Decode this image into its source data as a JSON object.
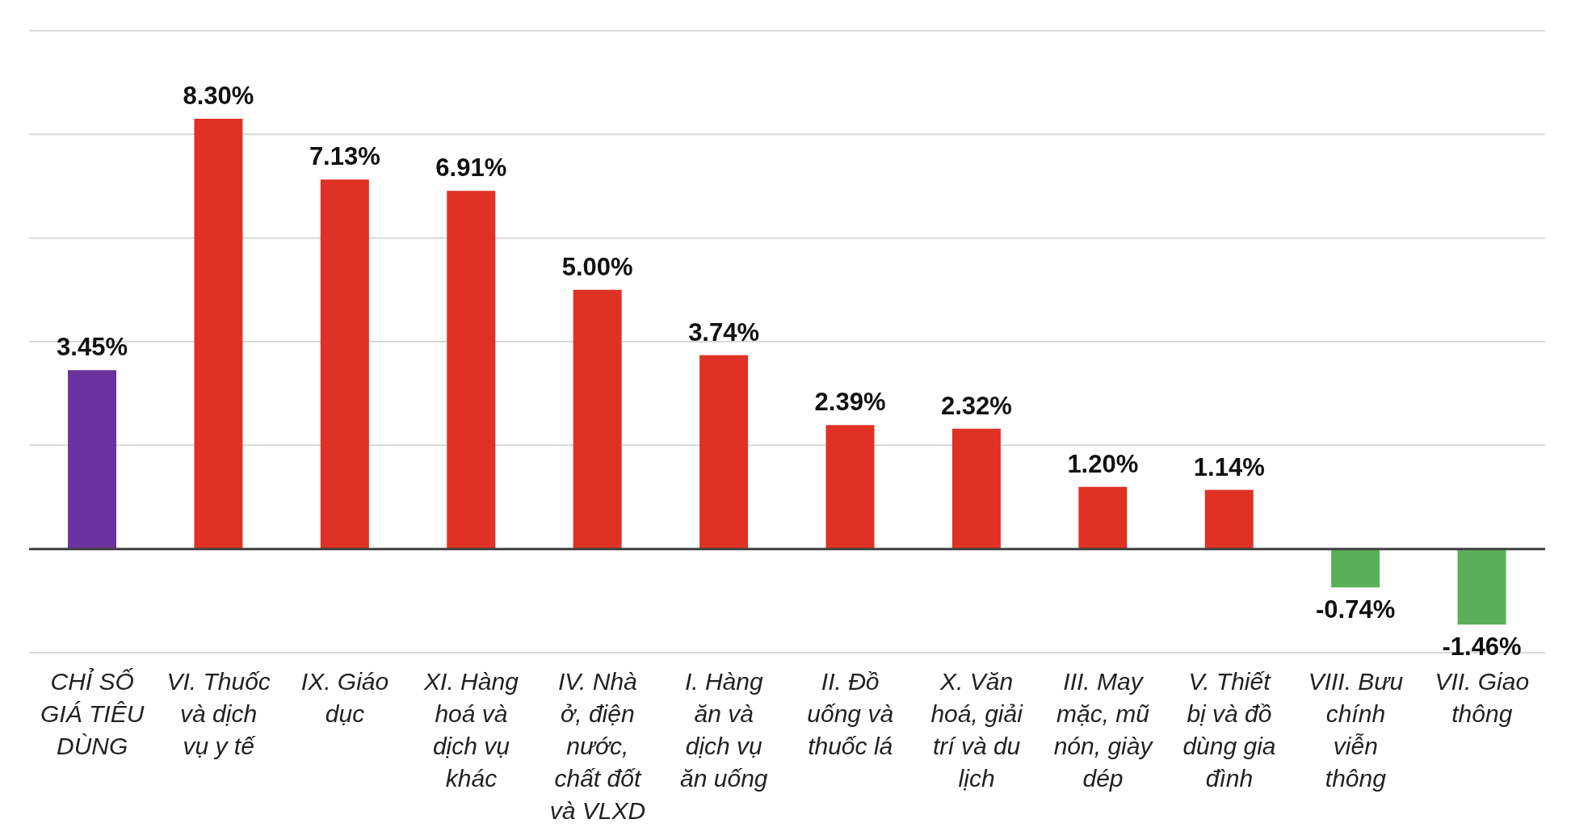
{
  "chart_data": {
    "type": "bar",
    "categories": [
      "CHỈ SỐ GIÁ TIÊU DÙNG",
      "VI. Thuốc và dịch vụ y tế",
      "IX. Giáo dục",
      "XI. Hàng hoá và dịch vụ khác",
      "IV. Nhà ở, điện nước, chất đốt và VLXD",
      "I. Hàng ăn và dịch vụ ăn uống",
      "II. Đồ uống và thuốc lá",
      "X. Văn hoá, giải trí và du lịch",
      "III. May mặc, mũ nón, giày dép",
      "V. Thiết bị và đồ dùng gia đình",
      "VIII. Bưu chính viễn thông",
      "VII. Giao thông"
    ],
    "values": [
      3.45,
      8.3,
      7.13,
      6.91,
      5.0,
      3.74,
      2.39,
      2.32,
      1.2,
      1.14,
      -0.74,
      -1.46
    ],
    "value_labels": [
      "3.45%",
      "8.30%",
      "7.13%",
      "6.91%",
      "5.00%",
      "3.74%",
      "2.39%",
      "2.32%",
      "1.20%",
      "1.14%",
      "-0.74%",
      "-1.46%"
    ],
    "colors": [
      "#6a33a0",
      "#e03224",
      "#e03224",
      "#e03224",
      "#e03224",
      "#e03224",
      "#e03224",
      "#e03224",
      "#e03224",
      "#e03224",
      "#5aaf5a",
      "#5aaf5a"
    ],
    "ylim": [
      -2,
      10
    ],
    "yticks": [
      {
        "value": -2,
        "label": null
      },
      {
        "value": 0,
        "label": null
      },
      {
        "value": 2,
        "label": null
      },
      {
        "value": 4,
        "label": null
      },
      {
        "value": 6,
        "label": null
      },
      {
        "value": 8,
        "label": null
      },
      {
        "value": 10,
        "label": null
      }
    ],
    "ref_lines": [
      {
        "axis": "y",
        "value": 0,
        "color": "#404040"
      }
    ],
    "grid": "y",
    "tick_labels": "x"
  }
}
